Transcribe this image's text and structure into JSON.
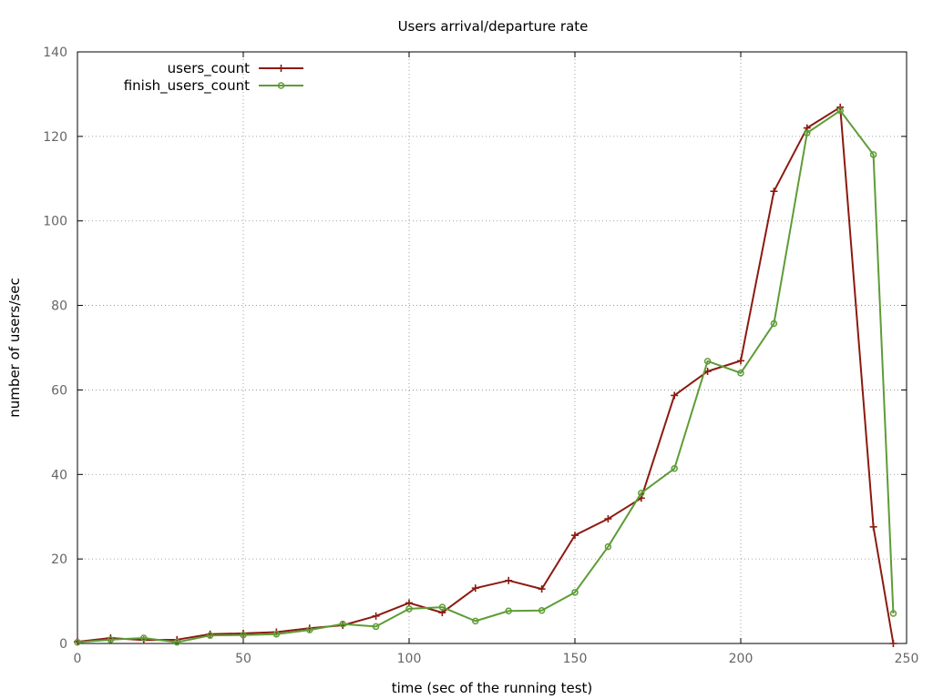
{
  "chart_data": {
    "type": "line",
    "title": "Users arrival/departure rate",
    "xlabel": "time (sec of the running test)",
    "ylabel": "number of users/sec",
    "xlim": [
      0,
      250
    ],
    "ylim": [
      0,
      140
    ],
    "xticks": [
      0,
      50,
      100,
      150,
      200,
      250
    ],
    "yticks": [
      0,
      20,
      40,
      60,
      80,
      100,
      120,
      140
    ],
    "grid": true,
    "legend_position": "top-left",
    "series": [
      {
        "name": "users_count",
        "color": "#8b1a10",
        "marker": "plus",
        "points": [
          [
            0,
            0.4
          ],
          [
            10,
            1.3
          ],
          [
            20,
            0.8
          ],
          [
            30,
            0.9
          ],
          [
            40,
            2.2
          ],
          [
            50,
            2.4
          ],
          [
            60,
            2.7
          ],
          [
            70,
            3.6
          ],
          [
            80,
            4.3
          ],
          [
            90,
            6.5
          ],
          [
            100,
            9.6
          ],
          [
            110,
            7.3
          ],
          [
            120,
            13.1
          ],
          [
            130,
            14.9
          ],
          [
            140,
            12.9
          ],
          [
            150,
            25.6
          ],
          [
            160,
            29.5
          ],
          [
            170,
            34.4
          ],
          [
            180,
            58.7
          ],
          [
            190,
            64.4
          ],
          [
            200,
            66.9
          ],
          [
            210,
            107.0
          ],
          [
            220,
            122.0
          ],
          [
            230,
            126.9
          ],
          [
            240,
            27.6
          ],
          [
            246,
            0
          ]
        ]
      },
      {
        "name": "finish_users_count",
        "color": "#5e9c36",
        "marker": "circle",
        "points": [
          [
            0,
            0.3
          ],
          [
            10,
            0.9
          ],
          [
            20,
            1.3
          ],
          [
            30,
            0.3
          ],
          [
            40,
            1.9
          ],
          [
            50,
            2.0
          ],
          [
            60,
            2.2
          ],
          [
            70,
            3.2
          ],
          [
            80,
            4.6
          ],
          [
            90,
            4.0
          ],
          [
            100,
            8.2
          ],
          [
            110,
            8.6
          ],
          [
            120,
            5.3
          ],
          [
            130,
            7.7
          ],
          [
            140,
            7.8
          ],
          [
            150,
            12.1
          ],
          [
            160,
            22.9
          ],
          [
            170,
            35.6
          ],
          [
            180,
            41.4
          ],
          [
            190,
            66.8
          ],
          [
            200,
            64.0
          ],
          [
            210,
            75.7
          ],
          [
            220,
            120.8
          ],
          [
            230,
            126.1
          ],
          [
            240,
            115.7
          ],
          [
            246,
            7.1
          ]
        ]
      }
    ]
  }
}
